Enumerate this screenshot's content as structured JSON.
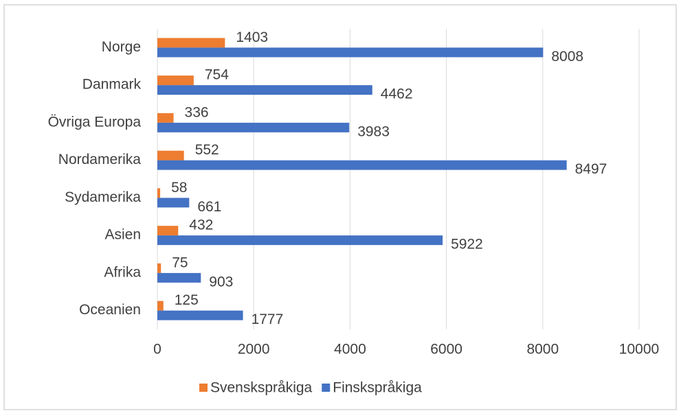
{
  "chart_data": {
    "type": "bar",
    "orientation": "horizontal",
    "categories": [
      "Norge",
      "Danmark",
      "Övriga Europa",
      "Nordamerika",
      "Sydamerika",
      "Asien",
      "Afrika",
      "Oceanien"
    ],
    "series": [
      {
        "name": "Svenskspråkiga",
        "color": "#ed7d31",
        "values": [
          1403,
          754,
          336,
          552,
          58,
          432,
          75,
          125
        ]
      },
      {
        "name": "Finskspråkiga",
        "color": "#4472c4",
        "values": [
          8008,
          4462,
          3983,
          8497,
          661,
          5922,
          903,
          1777
        ]
      }
    ],
    "xlim": [
      0,
      10000
    ],
    "xticks": [
      0,
      2000,
      4000,
      6000,
      8000,
      10000
    ],
    "grid": true,
    "legend": "bottom"
  }
}
